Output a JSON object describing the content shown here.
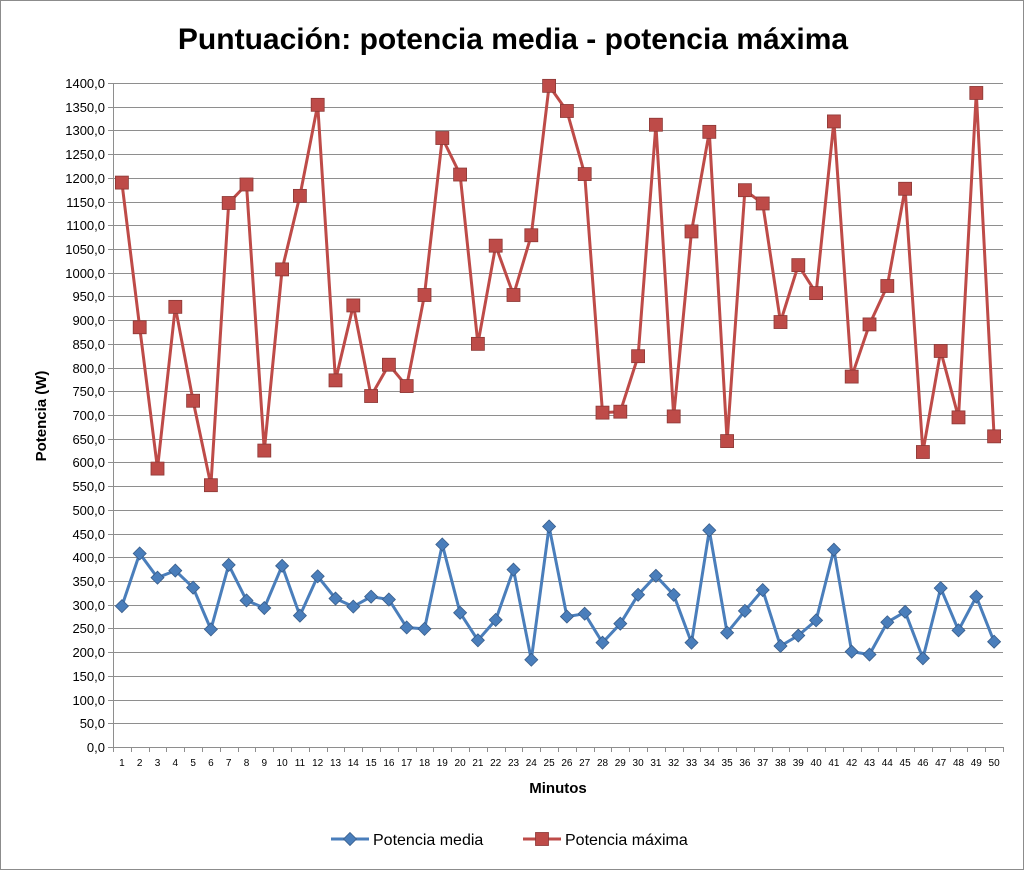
{
  "chart_data": {
    "type": "line",
    "title": "Puntuación: potencia media - potencia máxima",
    "xlabel": "Minutos",
    "ylabel": "Potencia (W)",
    "ylim": [
      0,
      1400
    ],
    "ytick_step": 50,
    "ytick_format": "one-decimal-comma",
    "grid": "horizontal",
    "legend_position": "bottom",
    "categories": [
      "1",
      "2",
      "3",
      "4",
      "5",
      "6",
      "7",
      "8",
      "9",
      "10",
      "11",
      "12",
      "13",
      "14",
      "15",
      "16",
      "17",
      "18",
      "19",
      "20",
      "21",
      "22",
      "23",
      "24",
      "25",
      "26",
      "27",
      "28",
      "29",
      "30",
      "31",
      "32",
      "33",
      "34",
      "35",
      "36",
      "37",
      "38",
      "39",
      "40",
      "41",
      "42",
      "43",
      "44",
      "45",
      "46",
      "47",
      "48",
      "49",
      "50"
    ],
    "series": [
      {
        "name": "Potencia media",
        "color": "#4a7ebb",
        "marker": "diamond",
        "values": [
          297,
          408,
          357,
          372,
          336,
          248,
          384,
          309,
          293,
          382,
          277,
          360,
          313,
          296,
          317,
          311,
          252,
          249,
          427,
          283,
          225,
          268,
          374,
          184,
          465,
          275,
          281,
          220,
          260,
          321,
          361,
          321,
          220,
          457,
          241,
          287,
          331,
          213,
          235,
          267,
          416,
          201,
          195,
          263,
          285,
          187,
          335,
          246,
          317,
          222
        ]
      },
      {
        "name": "Potencia máxima",
        "color": "#be4b48",
        "marker": "square",
        "values": [
          1190,
          885,
          587,
          928,
          730,
          552,
          1147,
          1186,
          625,
          1007,
          1162,
          1354,
          773,
          931,
          740,
          806,
          761,
          953,
          1284,
          1207,
          850,
          1057,
          953,
          1079,
          1394,
          1341,
          1208,
          705,
          707,
          824,
          1312,
          697,
          1087,
          1297,
          645,
          1174,
          1146,
          896,
          1016,
          957,
          1319,
          781,
          891,
          972,
          1177,
          622,
          835,
          695,
          1379,
          655
        ]
      }
    ]
  }
}
